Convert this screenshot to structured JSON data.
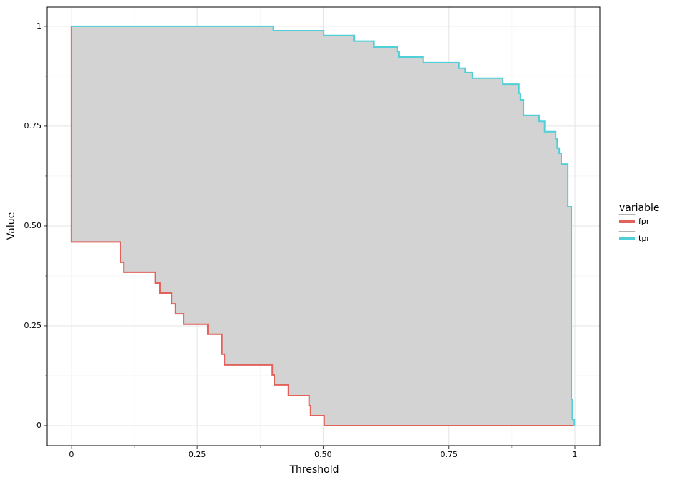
{
  "chart_data": {
    "type": "line",
    "xlabel": "Threshold",
    "ylabel": "Value",
    "xlim": [
      -0.048,
      1.0496
    ],
    "ylim": [
      -0.05,
      1.048
    ],
    "xticks": [
      0,
      0.25,
      {
        "value": 0.5,
        "label": "0.50"
      },
      0.75,
      1
    ],
    "yticks": [
      0,
      0.25,
      {
        "value": 0.5,
        "label": "0.50"
      },
      0.75,
      1
    ],
    "grid": true,
    "minor_grid": true,
    "ribbon_color": "#d3d3d3",
    "legend_title": "variable",
    "legend_position": "right",
    "series": [
      {
        "name": "fpr",
        "color": "#e0625a",
        "x": [
          0,
          0,
          0.098,
          0.098,
          0.104,
          0.104,
          0.167,
          0.167,
          0.176,
          0.176,
          0.199,
          0.199,
          0.207,
          0.207,
          0.223,
          0.223,
          0.271,
          0.271,
          0.299,
          0.299,
          0.304,
          0.304,
          0.399,
          0.399,
          0.403,
          0.403,
          0.431,
          0.431,
          0.472,
          0.472,
          0.475,
          0.475,
          0.502,
          0.502,
          0.997
        ],
        "values": [
          1,
          0.46,
          0.46,
          0.409,
          0.409,
          0.384,
          0.384,
          0.357,
          0.357,
          0.332,
          0.332,
          0.305,
          0.305,
          0.28,
          0.28,
          0.254,
          0.254,
          0.229,
          0.229,
          0.179,
          0.179,
          0.152,
          0.152,
          0.127,
          0.127,
          0.102,
          0.102,
          0.075,
          0.075,
          0.05,
          0.05,
          0.025,
          0.025,
          0,
          0
        ]
      },
      {
        "name": "tpr",
        "color": "#4fd0d8",
        "x": [
          0,
          0.401,
          0.401,
          0.501,
          0.501,
          0.562,
          0.562,
          0.601,
          0.601,
          0.648,
          0.648,
          0.651,
          0.651,
          0.699,
          0.699,
          0.77,
          0.77,
          0.782,
          0.782,
          0.797,
          0.797,
          0.857,
          0.857,
          0.889,
          0.889,
          0.892,
          0.892,
          0.898,
          0.898,
          0.929,
          0.929,
          0.94,
          0.94,
          0.962,
          0.962,
          0.965,
          0.965,
          0.969,
          0.969,
          0.973,
          0.973,
          0.986,
          0.986,
          0.993,
          0.993,
          0.995,
          0.995,
          0.999,
          0.999
        ],
        "values": [
          1,
          1,
          0.989,
          0.989,
          0.977,
          0.977,
          0.963,
          0.963,
          0.948,
          0.948,
          0.937,
          0.937,
          0.923,
          0.923,
          0.909,
          0.909,
          0.895,
          0.895,
          0.884,
          0.884,
          0.87,
          0.87,
          0.855,
          0.855,
          0.832,
          0.832,
          0.816,
          0.816,
          0.777,
          0.777,
          0.762,
          0.762,
          0.736,
          0.736,
          0.718,
          0.718,
          0.695,
          0.695,
          0.682,
          0.682,
          0.655,
          0.655,
          0.548,
          0.548,
          0.066,
          0.066,
          0.016,
          0.016,
          0
        ]
      }
    ]
  }
}
